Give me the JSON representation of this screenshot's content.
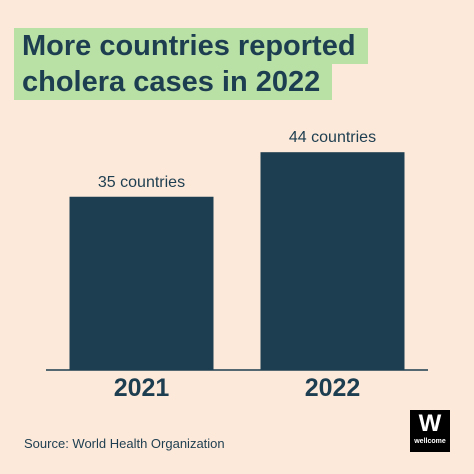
{
  "chart_data": {
    "type": "bar",
    "title": [
      "More countries reported",
      "cholera cases in 2022"
    ],
    "categories": [
      "2021",
      "2022"
    ],
    "values": [
      35,
      44
    ],
    "value_labels": [
      "35 countries",
      "44 countries"
    ],
    "color": "#1d3e50",
    "ylim": [
      0,
      50
    ],
    "source": "Source: World Health Organization",
    "logo": {
      "mark": "W",
      "text": "wellcome"
    }
  }
}
